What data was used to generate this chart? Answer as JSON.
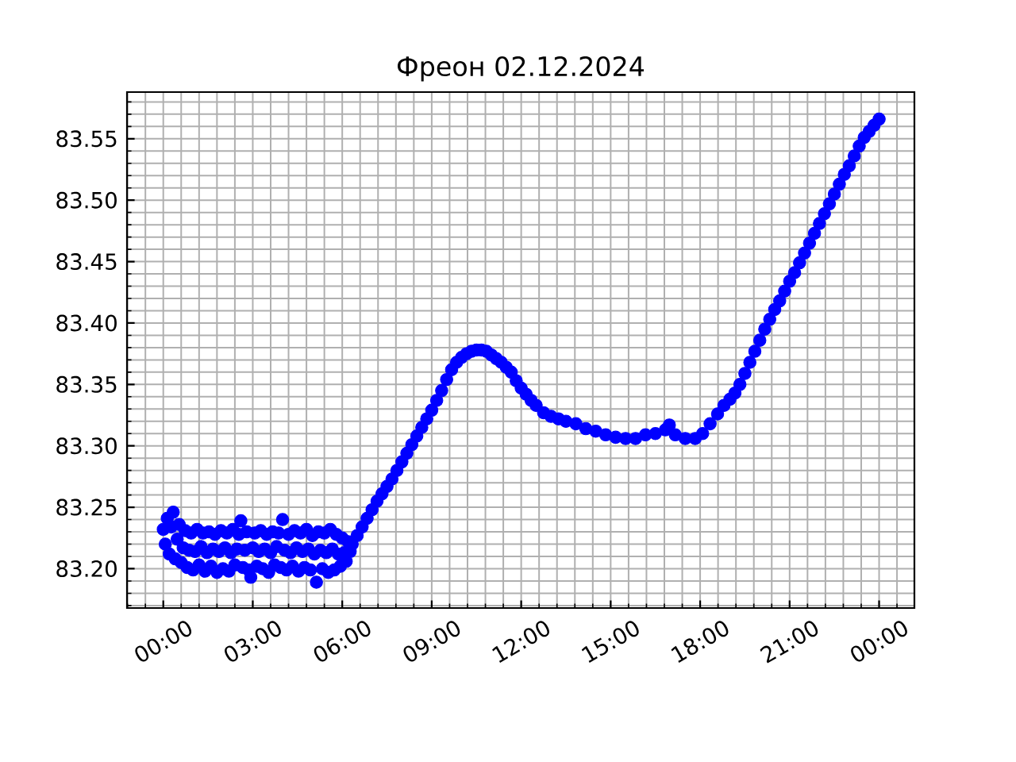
{
  "chart_data": {
    "type": "scatter",
    "title": "Фреон 02.12.2024",
    "marker": "circle",
    "color": "#0000ff",
    "grid": true,
    "xlim": [
      "2024-12-01T22:47",
      "2024-12-03T01:11"
    ],
    "xticks": [
      {
        "value": "2024-12-02T00:00",
        "label": "00:00"
      },
      {
        "value": "2024-12-02T03:00",
        "label": "03:00"
      },
      {
        "value": "2024-12-02T06:00",
        "label": "06:00"
      },
      {
        "value": "2024-12-02T09:00",
        "label": "09:00"
      },
      {
        "value": "2024-12-02T12:00",
        "label": "12:00"
      },
      {
        "value": "2024-12-02T15:00",
        "label": "15:00"
      },
      {
        "value": "2024-12-02T18:00",
        "label": "18:00"
      },
      {
        "value": "2024-12-02T21:00",
        "label": "21:00"
      },
      {
        "value": "2024-12-03T00:00",
        "label": "00:00"
      }
    ],
    "ylim": [
      83.168,
      83.588
    ],
    "yticks": [
      {
        "value": 83.2,
        "label": "83.20"
      },
      {
        "value": 83.25,
        "label": "83.25"
      },
      {
        "value": 83.3,
        "label": "83.30"
      },
      {
        "value": 83.35,
        "label": "83.35"
      },
      {
        "value": 83.4,
        "label": "83.40"
      },
      {
        "value": 83.45,
        "label": "83.45"
      },
      {
        "value": 83.5,
        "label": "83.50"
      },
      {
        "value": 83.55,
        "label": "83.55"
      }
    ],
    "x": [
      "2024-12-02T00:00",
      "2024-12-02T00:04",
      "2024-12-02T00:08",
      "2024-12-02T00:12",
      "2024-12-02T00:16",
      "2024-12-02T00:20",
      "2024-12-02T00:24",
      "2024-12-02T00:28",
      "2024-12-02T00:32",
      "2024-12-02T00:36",
      "2024-12-02T00:40",
      "2024-12-02T00:44",
      "2024-12-02T00:48",
      "2024-12-02T00:52",
      "2024-12-02T00:56",
      "2024-12-02T01:00",
      "2024-12-02T01:04",
      "2024-12-02T01:08",
      "2024-12-02T01:12",
      "2024-12-02T01:16",
      "2024-12-02T01:20",
      "2024-12-02T01:24",
      "2024-12-02T01:28",
      "2024-12-02T01:32",
      "2024-12-02T01:36",
      "2024-12-02T01:40",
      "2024-12-02T01:44",
      "2024-12-02T01:48",
      "2024-12-02T01:52",
      "2024-12-02T01:56",
      "2024-12-02T02:00",
      "2024-12-02T02:04",
      "2024-12-02T02:08",
      "2024-12-02T02:12",
      "2024-12-02T02:16",
      "2024-12-02T02:20",
      "2024-12-02T02:24",
      "2024-12-02T02:28",
      "2024-12-02T02:32",
      "2024-12-02T02:36",
      "2024-12-02T02:40",
      "2024-12-02T02:44",
      "2024-12-02T02:48",
      "2024-12-02T02:52",
      "2024-12-02T02:56",
      "2024-12-02T03:00",
      "2024-12-02T03:04",
      "2024-12-02T03:08",
      "2024-12-02T03:12",
      "2024-12-02T03:16",
      "2024-12-02T03:20",
      "2024-12-02T03:24",
      "2024-12-02T03:28",
      "2024-12-02T03:32",
      "2024-12-02T03:36",
      "2024-12-02T03:40",
      "2024-12-02T03:44",
      "2024-12-02T03:48",
      "2024-12-02T03:52",
      "2024-12-02T03:56",
      "2024-12-02T04:00",
      "2024-12-02T04:04",
      "2024-12-02T04:08",
      "2024-12-02T04:12",
      "2024-12-02T04:16",
      "2024-12-02T04:20",
      "2024-12-02T04:24",
      "2024-12-02T04:28",
      "2024-12-02T04:32",
      "2024-12-02T04:36",
      "2024-12-02T04:40",
      "2024-12-02T04:44",
      "2024-12-02T04:48",
      "2024-12-02T04:52",
      "2024-12-02T04:56",
      "2024-12-02T05:00",
      "2024-12-02T05:04",
      "2024-12-02T05:08",
      "2024-12-02T05:12",
      "2024-12-02T05:16",
      "2024-12-02T05:20",
      "2024-12-02T05:24",
      "2024-12-02T05:28",
      "2024-12-02T05:32",
      "2024-12-02T05:36",
      "2024-12-02T05:40",
      "2024-12-02T05:44",
      "2024-12-02T05:48",
      "2024-12-02T05:52",
      "2024-12-02T05:56",
      "2024-12-02T06:00",
      "2024-12-02T06:04",
      "2024-12-02T06:08",
      "2024-12-02T06:12",
      "2024-12-02T06:16",
      "2024-12-02T06:20",
      "2024-12-02T06:30",
      "2024-12-02T06:40",
      "2024-12-02T06:50",
      "2024-12-02T07:00",
      "2024-12-02T07:10",
      "2024-12-02T07:20",
      "2024-12-02T07:30",
      "2024-12-02T07:40",
      "2024-12-02T07:50",
      "2024-12-02T08:00",
      "2024-12-02T08:10",
      "2024-12-02T08:20",
      "2024-12-02T08:30",
      "2024-12-02T08:40",
      "2024-12-02T08:50",
      "2024-12-02T09:00",
      "2024-12-02T09:10",
      "2024-12-02T09:20",
      "2024-12-02T09:30",
      "2024-12-02T09:40",
      "2024-12-02T09:50",
      "2024-12-02T10:00",
      "2024-12-02T10:10",
      "2024-12-02T10:20",
      "2024-12-02T10:30",
      "2024-12-02T10:40",
      "2024-12-02T10:50",
      "2024-12-02T11:00",
      "2024-12-02T11:10",
      "2024-12-02T11:20",
      "2024-12-02T11:30",
      "2024-12-02T11:40",
      "2024-12-02T11:50",
      "2024-12-02T12:00",
      "2024-12-02T12:10",
      "2024-12-02T12:20",
      "2024-12-02T12:30",
      "2024-12-02T12:45",
      "2024-12-02T13:00",
      "2024-12-02T13:15",
      "2024-12-02T13:30",
      "2024-12-02T13:50",
      "2024-12-02T14:10",
      "2024-12-02T14:30",
      "2024-12-02T14:50",
      "2024-12-02T15:10",
      "2024-12-02T15:30",
      "2024-12-02T15:50",
      "2024-12-02T16:10",
      "2024-12-02T16:30",
      "2024-12-02T16:50",
      "2024-12-02T16:58",
      "2024-12-02T17:10",
      "2024-12-02T17:30",
      "2024-12-02T17:50",
      "2024-12-02T18:05",
      "2024-12-02T18:20",
      "2024-12-02T18:35",
      "2024-12-02T18:48",
      "2024-12-02T19:00",
      "2024-12-02T19:10",
      "2024-12-02T19:20",
      "2024-12-02T19:30",
      "2024-12-02T19:40",
      "2024-12-02T19:50",
      "2024-12-02T20:00",
      "2024-12-02T20:10",
      "2024-12-02T20:20",
      "2024-12-02T20:30",
      "2024-12-02T20:40",
      "2024-12-02T20:50",
      "2024-12-02T21:00",
      "2024-12-02T21:10",
      "2024-12-02T21:20",
      "2024-12-02T21:30",
      "2024-12-02T21:40",
      "2024-12-02T21:50",
      "2024-12-02T22:00",
      "2024-12-02T22:10",
      "2024-12-02T22:20",
      "2024-12-02T22:30",
      "2024-12-02T22:40",
      "2024-12-02T22:50",
      "2024-12-02T23:00",
      "2024-12-02T23:10",
      "2024-12-02T23:20",
      "2024-12-02T23:30",
      "2024-12-02T23:40",
      "2024-12-02T23:50",
      "2024-12-03T00:00"
    ],
    "values": [
      83.232,
      83.22,
      83.241,
      83.212,
      83.234,
      83.246,
      83.208,
      83.224,
      83.236,
      83.205,
      83.217,
      83.231,
      83.201,
      83.215,
      83.229,
      83.199,
      83.214,
      83.232,
      83.203,
      83.218,
      83.229,
      83.198,
      83.213,
      83.23,
      83.202,
      83.216,
      83.228,
      83.197,
      83.214,
      83.231,
      83.2,
      83.217,
      83.229,
      83.198,
      83.213,
      83.232,
      83.203,
      83.216,
      83.228,
      83.239,
      83.201,
      83.215,
      83.23,
      83.199,
      83.193,
      83.217,
      83.229,
      83.202,
      83.214,
      83.231,
      83.2,
      83.216,
      83.228,
      83.197,
      83.213,
      83.23,
      83.203,
      83.218,
      83.229,
      83.201,
      83.24,
      83.215,
      83.199,
      83.228,
      83.213,
      83.202,
      83.231,
      83.217,
      83.198,
      83.229,
      83.214,
      83.201,
      83.232,
      83.216,
      83.199,
      83.227,
      83.212,
      83.189,
      83.23,
      83.215,
      83.2,
      83.229,
      83.213,
      83.197,
      83.232,
      83.216,
      83.199,
      83.228,
      83.212,
      83.202,
      83.225,
      83.213,
      83.206,
      83.222,
      83.214,
      83.22,
      83.227,
      83.234,
      83.241,
      83.248,
      83.255,
      83.261,
      83.267,
      83.273,
      83.28,
      83.287,
      83.294,
      83.301,
      83.308,
      83.315,
      83.322,
      83.329,
      83.337,
      83.345,
      83.354,
      83.362,
      83.368,
      83.372,
      83.375,
      83.377,
      83.378,
      83.378,
      83.377,
      83.374,
      83.371,
      83.368,
      83.364,
      83.36,
      83.353,
      83.347,
      83.342,
      83.337,
      83.333,
      83.327,
      83.324,
      83.322,
      83.32,
      83.318,
      83.314,
      83.312,
      83.309,
      83.307,
      83.306,
      83.306,
      83.309,
      83.31,
      83.313,
      83.317,
      83.309,
      83.306,
      83.306,
      83.31,
      83.318,
      83.326,
      83.333,
      83.338,
      83.343,
      83.35,
      83.359,
      83.368,
      83.377,
      83.386,
      83.395,
      83.403,
      83.411,
      83.418,
      83.426,
      83.434,
      83.441,
      83.449,
      83.457,
      83.465,
      83.473,
      83.481,
      83.489,
      83.497,
      83.505,
      83.513,
      83.521,
      83.528,
      83.536,
      83.544,
      83.551,
      83.556,
      83.561,
      83.566
    ]
  }
}
